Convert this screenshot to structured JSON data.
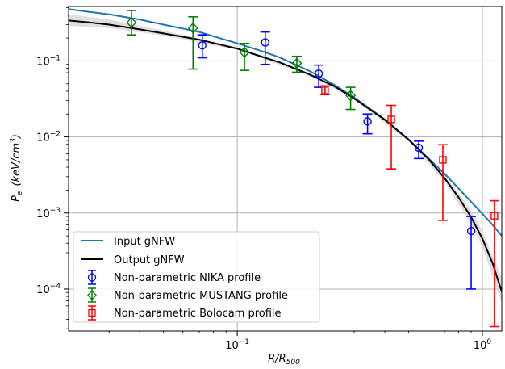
{
  "chart_data": {
    "type": "scatter",
    "xlabel_main": "R/R",
    "xlabel_sub": "500",
    "ylabel_main": "P",
    "ylabel_sub": "e",
    "ylabel_unit": "(keV/cm",
    "ylabel_unit_sup": "3",
    "ylabel_unit_close": ")",
    "x_scale": "log",
    "y_scale": "log",
    "xlim": [
      0.0205,
      1.2
    ],
    "ylim": [
      2.8e-05,
      0.52
    ],
    "grid": true,
    "legend_position": "lower-left",
    "x_ticks": [
      {
        "value": 0.1,
        "base": "10",
        "exp": "−1"
      },
      {
        "value": 1.0,
        "base": "10",
        "exp": "0"
      }
    ],
    "y_ticks": [
      {
        "value": 0.1,
        "base": "10",
        "exp": "−1"
      },
      {
        "value": 0.01,
        "base": "10",
        "exp": "−2"
      },
      {
        "value": 0.001,
        "base": "10",
        "exp": "−3"
      },
      {
        "value": 0.0001,
        "base": "10",
        "exp": "−4"
      }
    ],
    "lines": [
      {
        "name": "Input gNFW",
        "color": "#1f77b4",
        "x": [
          0.0205,
          0.025,
          0.03,
          0.04,
          0.05,
          0.07,
          0.1,
          0.13,
          0.15,
          0.2,
          0.25,
          0.3,
          0.4,
          0.5,
          0.6,
          0.7,
          0.8,
          0.9,
          1.0,
          1.1,
          1.2
        ],
        "y": [
          0.48,
          0.44,
          0.41,
          0.35,
          0.3,
          0.24,
          0.17,
          0.13,
          0.11,
          0.072,
          0.048,
          0.033,
          0.017,
          0.0093,
          0.0053,
          0.0033,
          0.0021,
          0.0014,
          0.00098,
          0.0007,
          0.0005
        ]
      },
      {
        "name": "Output gNFW",
        "color": "#000000",
        "x": [
          0.0205,
          0.025,
          0.03,
          0.04,
          0.05,
          0.07,
          0.1,
          0.13,
          0.15,
          0.2,
          0.25,
          0.3,
          0.4,
          0.5,
          0.6,
          0.7,
          0.8,
          0.9,
          1.0,
          1.1,
          1.2
        ],
        "y": [
          0.34,
          0.32,
          0.3,
          0.26,
          0.23,
          0.19,
          0.145,
          0.11,
          0.095,
          0.065,
          0.046,
          0.032,
          0.0168,
          0.0092,
          0.0052,
          0.0029,
          0.0016,
          0.00088,
          0.00046,
          0.00022,
          9.2e-05
        ]
      }
    ],
    "band": {
      "x": [
        0.0205,
        0.03,
        0.05,
        0.1,
        0.2,
        0.3,
        0.5,
        0.7,
        0.9,
        1.0,
        1.2
      ],
      "lower": [
        0.29,
        0.27,
        0.215,
        0.14,
        0.063,
        0.031,
        0.0088,
        0.0026,
        0.00072,
        0.00036,
        6.5e-05
      ],
      "upper": [
        0.41,
        0.35,
        0.25,
        0.152,
        0.068,
        0.033,
        0.0096,
        0.0032,
        0.0011,
        0.00058,
        0.00014
      ]
    },
    "series": [
      {
        "name": "Non-parametric NIKA profile",
        "color": "#0000ff",
        "marker": "circle",
        "points": [
          {
            "x": 0.072,
            "y": 0.16,
            "lo": 0.11,
            "hi": 0.22
          },
          {
            "x": 0.13,
            "y": 0.175,
            "lo": 0.09,
            "hi": 0.24
          },
          {
            "x": 0.215,
            "y": 0.068,
            "lo": 0.045,
            "hi": 0.088
          },
          {
            "x": 0.34,
            "y": 0.016,
            "lo": 0.011,
            "hi": 0.02
          },
          {
            "x": 0.55,
            "y": 0.0072,
            "lo": 0.0052,
            "hi": 0.0088
          },
          {
            "x": 0.9,
            "y": 0.00058,
            "lo": 0.0001,
            "hi": 0.0009
          }
        ]
      },
      {
        "name": "Non-parametric MUSTANG profile",
        "color": "#008000",
        "marker": "diamond",
        "points": [
          {
            "x": 0.037,
            "y": 0.32,
            "lo": 0.22,
            "hi": 0.46
          },
          {
            "x": 0.066,
            "y": 0.27,
            "lo": 0.078,
            "hi": 0.38
          },
          {
            "x": 0.107,
            "y": 0.13,
            "lo": 0.075,
            "hi": 0.17
          },
          {
            "x": 0.175,
            "y": 0.093,
            "lo": 0.071,
            "hi": 0.115
          },
          {
            "x": 0.29,
            "y": 0.035,
            "lo": 0.023,
            "hi": 0.045
          }
        ]
      },
      {
        "name": "Non-parametric Bolocam profile",
        "color": "#ff0000",
        "marker": "square",
        "points": [
          {
            "x": 0.228,
            "y": 0.041,
            "lo": 0.036,
            "hi": 0.047
          },
          {
            "x": 0.425,
            "y": 0.017,
            "lo": 0.0038,
            "hi": 0.026
          },
          {
            "x": 0.69,
            "y": 0.005,
            "lo": 0.0008,
            "hi": 0.0079
          },
          {
            "x": 1.12,
            "y": 0.00092,
            "lo": 3.2e-05,
            "hi": 0.00145
          }
        ]
      }
    ]
  }
}
